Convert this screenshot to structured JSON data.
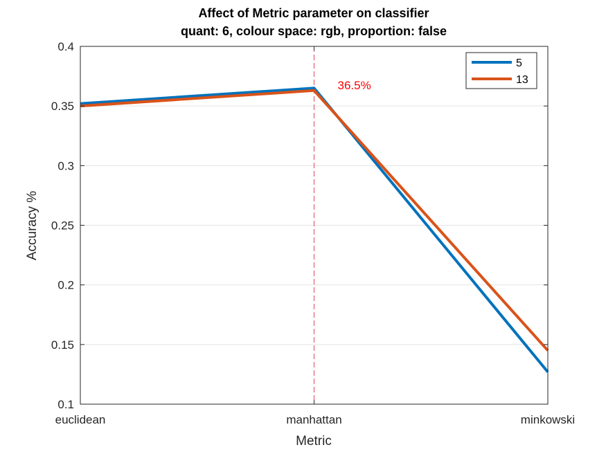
{
  "chart_data": {
    "type": "line",
    "title": "Affect of Metric parameter on classifier",
    "subtitle": "quant: 6, colour space: rgb, proportion: false",
    "xlabel": "Metric",
    "ylabel": "Accuracy %",
    "categories": [
      "euclidean",
      "manhattan",
      "minkowski"
    ],
    "ylim": [
      0.1,
      0.4
    ],
    "yticks": [
      0.1,
      0.15,
      0.2,
      0.25,
      0.3,
      0.35,
      0.4
    ],
    "ytick_labels": [
      "0.1",
      "0.15",
      "0.2",
      "0.25",
      "0.3",
      "0.35",
      "0.4"
    ],
    "grid": "horizontal",
    "legend_position": "top-right",
    "series": [
      {
        "name": "5",
        "color": "#0072BD",
        "values": [
          0.352,
          0.365,
          0.127
        ]
      },
      {
        "name": "13",
        "color": "#D95319",
        "values": [
          0.35,
          0.363,
          0.145
        ]
      }
    ],
    "annotations": [
      {
        "text": "36.5%",
        "category": "manhattan",
        "y": 0.363,
        "color": "#FF0000"
      }
    ],
    "reference_lines": [
      {
        "orientation": "vertical",
        "category": "manhattan",
        "style": "dashed",
        "color": "#D9485A"
      }
    ]
  }
}
